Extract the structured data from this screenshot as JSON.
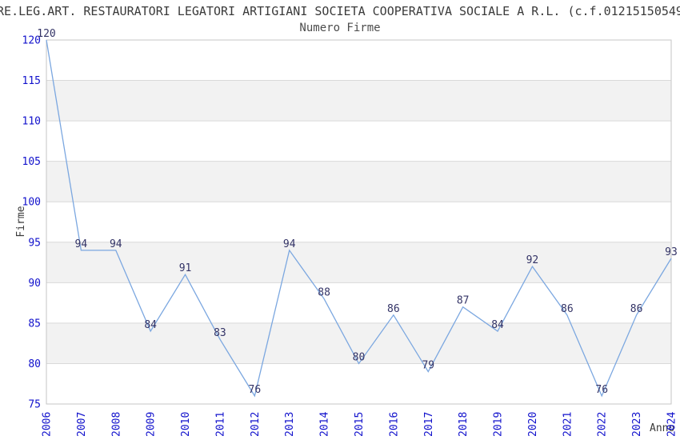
{
  "page": {
    "title": "RE.LEG.ART. RESTAURATORI LEGATORI ARTIGIANI SOCIETA COOPERATIVA SOCIALE A R.L. (c.f.01215150549"
  },
  "chart_data": {
    "type": "line",
    "title": "Numero Firme",
    "xlabel": "Anno",
    "ylabel": "Firme",
    "x": [
      "2006",
      "2007",
      "2008",
      "2009",
      "2010",
      "2011",
      "2012",
      "2013",
      "2014",
      "2015",
      "2016",
      "2017",
      "2018",
      "2019",
      "2020",
      "2021",
      "2022",
      "2023",
      "2024"
    ],
    "values": [
      120,
      94,
      94,
      84,
      91,
      83,
      76,
      94,
      88,
      80,
      86,
      79,
      87,
      84,
      92,
      86,
      76,
      86,
      93
    ],
    "ylim": [
      75,
      120
    ],
    "ytick_step": 5,
    "legend": "none",
    "grid": "horizontal gridlines with alternating gray bands",
    "colors": {
      "line": "#7ba7e0",
      "tick_label": "#1111cc",
      "data_label": "#333366",
      "band": "#f2f2f2",
      "gridline": "#d9d9d9",
      "border": "#c6c6c6",
      "title_text": "#3a3a3a",
      "subtitle_text": "#4c4c4c",
      "axis_title_text": "#3a3a3a"
    }
  }
}
